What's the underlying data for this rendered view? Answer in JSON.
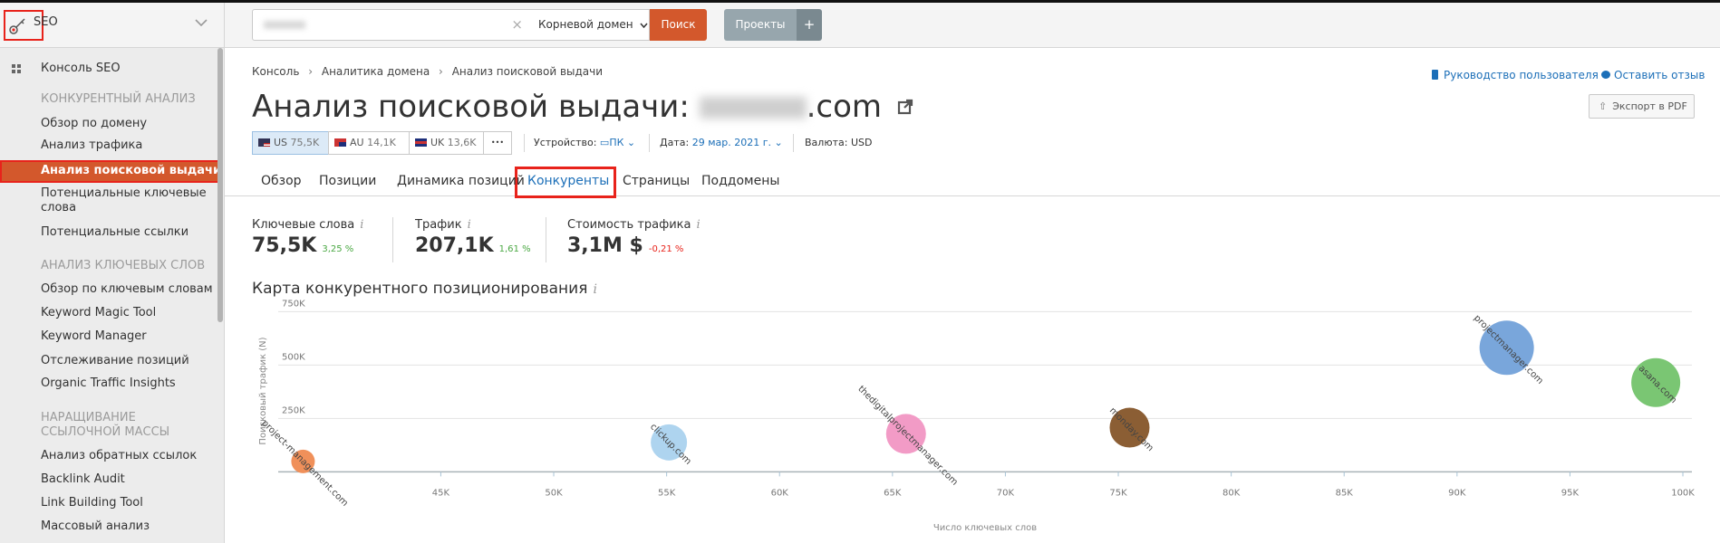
{
  "sidebar": {
    "header": {
      "label": "SEO",
      "icon": "key-icon"
    },
    "items": [
      {
        "type": "item",
        "label": "Консоль SEO",
        "icon": "grid-icon"
      },
      {
        "type": "section",
        "label": "КОНКУРЕНТНЫЙ АНАЛИЗ"
      },
      {
        "type": "item",
        "label": "Обзор по домену"
      },
      {
        "type": "item",
        "label": "Анализ трафика"
      },
      {
        "type": "item",
        "label": "Анализ поисковой выдачи",
        "active": true
      },
      {
        "type": "item",
        "label": "Потенциальные ключевые\nслова"
      },
      {
        "type": "item",
        "label": "Потенциальные ссылки"
      },
      {
        "type": "section",
        "label": "АНАЛИЗ КЛЮЧЕВЫХ СЛОВ"
      },
      {
        "type": "item",
        "label": "Обзор по ключевым словам"
      },
      {
        "type": "item",
        "label": "Keyword Magic Tool"
      },
      {
        "type": "item",
        "label": "Keyword Manager"
      },
      {
        "type": "item",
        "label": "Отслеживание позиций"
      },
      {
        "type": "item",
        "label": "Organic Traffic Insights"
      },
      {
        "type": "section",
        "label": "НАРАЩИВАНИЕ\nССЫЛОЧНОЙ МАССЫ"
      },
      {
        "type": "item",
        "label": "Анализ обратных ссылок"
      },
      {
        "type": "item",
        "label": "Backlink Audit"
      },
      {
        "type": "item",
        "label": "Link Building Tool"
      },
      {
        "type": "item",
        "label": "Массовый анализ"
      }
    ]
  },
  "topbar": {
    "clear": "×",
    "domain_type": "Корневой домен",
    "search_button": "Поиск",
    "projects_button": "Проекты",
    "add_button": "+"
  },
  "breadcrumb": [
    "Консоль",
    "Аналитика домена",
    "Анализ поисковой выдачи"
  ],
  "links": {
    "guide": "Руководство пользователя",
    "feedback": "Оставить отзыв"
  },
  "title": {
    "prefix": "Анализ поисковой выдачи: ",
    "suffix": ".com"
  },
  "export_button": "Экспорт в PDF",
  "regions": [
    {
      "code": "US",
      "value": "75,5K",
      "selected": true
    },
    {
      "code": "AU",
      "value": "14,1K"
    },
    {
      "code": "UK",
      "value": "13,6K"
    }
  ],
  "more_button": "•••",
  "filters": {
    "device_label": "Устройство:",
    "device_value": "ПК",
    "date_label": "Дата:",
    "date_value": "29 мар. 2021 г.",
    "currency_label": "Валюта:",
    "currency_value": "USD"
  },
  "tabs": [
    {
      "label": "Обзор"
    },
    {
      "label": "Позиции"
    },
    {
      "label": "Динамика позиций"
    },
    {
      "label": "Конкуренты",
      "active": true
    },
    {
      "label": "Страницы"
    },
    {
      "label": "Поддомены"
    }
  ],
  "stats": [
    {
      "label": "Ключевые слова",
      "value": "75,5K",
      "change": "3,25 %",
      "trend": "up"
    },
    {
      "label": "Трафик",
      "value": "207,1K",
      "change": "1,61 %",
      "trend": "up"
    },
    {
      "label": "Стоимость трафика",
      "value": "3,1M $",
      "change": "-0,21 %",
      "trend": "down"
    }
  ],
  "info_glyph": "i",
  "colors": {
    "accent": "#d3582c",
    "link": "#1c6fb8",
    "up": "#4aa843",
    "down": "#e8231b",
    "highlight": "#e8231b"
  },
  "chart_data": {
    "type": "scatter",
    "title": "Карта конкурентного позиционирования",
    "xlabel": "Число ключевых слов",
    "ylabel": "Поисковый трафик (N)",
    "xlim": [
      37800,
      100400
    ],
    "ylim": [
      0,
      750000
    ],
    "xticks": [
      45000,
      50000,
      55000,
      60000,
      65000,
      70000,
      75000,
      80000,
      85000,
      90000,
      95000,
      100000
    ],
    "xtick_labels": [
      "45K",
      "50K",
      "55K",
      "60K",
      "65K",
      "70K",
      "75K",
      "80K",
      "85K",
      "90K",
      "95K",
      "100K"
    ],
    "yticks": [
      250000,
      500000,
      750000
    ],
    "ytick_labels": [
      "250K",
      "500K",
      "750K"
    ],
    "grid": true,
    "points": [
      {
        "name": "project-management.com",
        "x": 38900,
        "y": 49000,
        "size": 13,
        "color": "#f0905a"
      },
      {
        "name": "clickup.com",
        "x": 55100,
        "y": 138000,
        "size": 20,
        "color": "#aed4ef"
      },
      {
        "name": "thedigitalprojectmanager.com",
        "x": 65600,
        "y": 178000,
        "size": 22,
        "color": "#f29bc6"
      },
      {
        "name": "monday.com",
        "x": 75500,
        "y": 207100,
        "size": 22,
        "color": "#8b5e34"
      },
      {
        "name": "projectmanager.com",
        "x": 92200,
        "y": 581000,
        "size": 30,
        "color": "#79a6db"
      },
      {
        "name": "asana.com",
        "x": 98800,
        "y": 418000,
        "size": 27,
        "color": "#7ac673"
      }
    ]
  }
}
